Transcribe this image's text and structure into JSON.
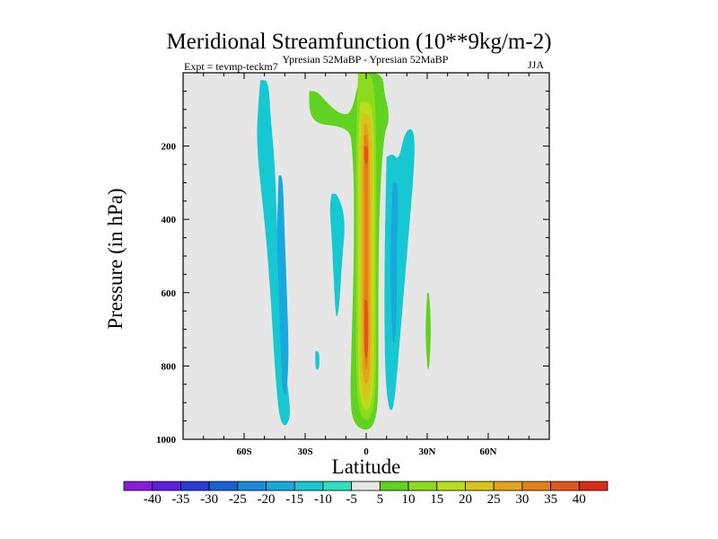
{
  "chart_data": {
    "type": "contour",
    "title": "Meridional Streamfunction (10**9kg/m-2)",
    "subtitle_center": "Ypresian  52MaBP - Ypresian  52MaBP",
    "subtitle_left": "Expt = tevmp-teckm7",
    "subtitle_right": "JJA",
    "xlabel": "Latitude",
    "ylabel": "Pressure (in hPa)",
    "xlim": [
      -90,
      90
    ],
    "ylim": [
      1000,
      0
    ],
    "x_ticks": [
      {
        "value": -60,
        "label": "60S"
      },
      {
        "value": -30,
        "label": "30S"
      },
      {
        "value": 0,
        "label": "0"
      },
      {
        "value": 30,
        "label": "30N"
      },
      {
        "value": 60,
        "label": "60N"
      }
    ],
    "y_ticks": [
      {
        "value": 200,
        "label": "200"
      },
      {
        "value": 400,
        "label": "400"
      },
      {
        "value": 600,
        "label": "600"
      },
      {
        "value": 800,
        "label": "800"
      },
      {
        "value": 1000,
        "label": "1000"
      }
    ],
    "background_color": "#e6e6e6",
    "contour_levels": [
      -40,
      -35,
      -30,
      -25,
      -20,
      -15,
      -10,
      -5,
      5,
      10,
      15,
      20,
      25,
      30,
      35,
      40
    ],
    "colorbar_colors": [
      "#8a1bdc",
      "#5a1ee0",
      "#2a3ad6",
      "#1760d6",
      "#1a8ad9",
      "#17a9dc",
      "#16c8d2",
      "#2ee0c0",
      "#e6e6e6",
      "#5fd31f",
      "#8edb1e",
      "#bcdc1e",
      "#d8c51c",
      "#e2a51a",
      "#e4801a",
      "#e2561a",
      "#dc2a18"
    ],
    "features": [
      {
        "name": "sh-outer-cell",
        "level": -10,
        "points": [
          [
            -52,
            20
          ],
          [
            -48,
            20
          ],
          [
            -47,
            120
          ],
          [
            -45,
            240
          ],
          [
            -44,
            380
          ],
          [
            -43,
            540
          ],
          [
            -41,
            700
          ],
          [
            -39,
            840
          ],
          [
            -37,
            930
          ],
          [
            -39,
            962
          ],
          [
            -41,
            962
          ],
          [
            -43,
            930
          ],
          [
            -45,
            800
          ],
          [
            -47,
            600
          ],
          [
            -50,
            400
          ],
          [
            -54,
            200
          ],
          [
            -53,
            80
          ],
          [
            -52,
            20
          ]
        ]
      },
      {
        "name": "sh-outer-core",
        "level": -15,
        "points": [
          [
            -43,
            280
          ],
          [
            -41,
            280
          ],
          [
            -40,
            450
          ],
          [
            -39,
            600
          ],
          [
            -38,
            760
          ],
          [
            -39,
            880
          ],
          [
            -41,
            880
          ],
          [
            -42,
            760
          ],
          [
            -43,
            600
          ],
          [
            -44,
            440
          ],
          [
            -43,
            280
          ]
        ]
      },
      {
        "name": "sh-inner-cell",
        "level": -10,
        "points": [
          [
            -17,
            330
          ],
          [
            -14,
            330
          ],
          [
            -10,
            400
          ],
          [
            -12,
            520
          ],
          [
            -13,
            620
          ],
          [
            -14,
            665
          ],
          [
            -15,
            665
          ],
          [
            -16,
            560
          ],
          [
            -17,
            440
          ],
          [
            -18,
            370
          ],
          [
            -17,
            330
          ]
        ]
      },
      {
        "name": "nh-inner-cell",
        "level": -10,
        "points": [
          [
            10,
            230
          ],
          [
            13,
            220
          ],
          [
            16,
            240
          ],
          [
            19,
            160
          ],
          [
            23,
            150
          ],
          [
            24,
            200
          ],
          [
            23,
            300
          ],
          [
            20,
            500
          ],
          [
            17,
            700
          ],
          [
            14,
            900
          ],
          [
            12,
            930
          ],
          [
            10,
            880
          ],
          [
            9,
            750
          ],
          [
            9,
            500
          ],
          [
            10,
            230
          ]
        ]
      },
      {
        "name": "nh-inner-core",
        "level": -15,
        "points": [
          [
            13,
            300
          ],
          [
            16,
            300
          ],
          [
            15,
            500
          ],
          [
            15,
            700
          ],
          [
            13,
            760
          ],
          [
            12,
            600
          ],
          [
            12,
            450
          ],
          [
            13,
            300
          ]
        ]
      },
      {
        "name": "small-cell-south",
        "level": -10,
        "points": [
          [
            -25,
            760
          ],
          [
            -23,
            760
          ],
          [
            -23,
            810
          ],
          [
            -25,
            810
          ],
          [
            -25,
            760
          ]
        ]
      },
      {
        "name": "small-cell-north",
        "level": 5,
        "points": [
          [
            30,
            600
          ],
          [
            31,
            600
          ],
          [
            32,
            700
          ],
          [
            31,
            810
          ],
          [
            30,
            810
          ],
          [
            29,
            700
          ],
          [
            30,
            600
          ]
        ]
      },
      {
        "name": "upper-bridge",
        "level": 5,
        "points": [
          [
            -28,
            50
          ],
          [
            -24,
            50
          ],
          [
            -18,
            90
          ],
          [
            -12,
            115
          ],
          [
            -7,
            110
          ],
          [
            -3,
            0
          ],
          [
            8,
            0
          ],
          [
            9,
            60
          ],
          [
            11,
            100
          ],
          [
            11,
            140
          ],
          [
            9,
            160
          ],
          [
            7,
            300
          ],
          [
            6,
            500
          ],
          [
            6,
            700
          ],
          [
            6,
            900
          ],
          [
            4,
            960
          ],
          [
            0,
            978
          ],
          [
            -6,
            960
          ],
          [
            -8,
            900
          ],
          [
            -7,
            700
          ],
          [
            -6,
            500
          ],
          [
            -6,
            300
          ],
          [
            -7,
            200
          ],
          [
            -8,
            160
          ],
          [
            -14,
            145
          ],
          [
            -24,
            140
          ],
          [
            -28,
            110
          ],
          [
            -28,
            50
          ]
        ]
      },
      {
        "name": "jet-10",
        "level": 10,
        "points": [
          [
            -4,
            0
          ],
          [
            4,
            0
          ],
          [
            5,
            200
          ],
          [
            5,
            400
          ],
          [
            5,
            600
          ],
          [
            5,
            800
          ],
          [
            4,
            920
          ],
          [
            0,
            955
          ],
          [
            -4,
            920
          ],
          [
            -5,
            800
          ],
          [
            -5,
            600
          ],
          [
            -5,
            400
          ],
          [
            -5,
            200
          ],
          [
            -4,
            0
          ]
        ]
      },
      {
        "name": "jet-15",
        "level": 15,
        "points": [
          [
            -3,
            80
          ],
          [
            3,
            80
          ],
          [
            4,
            200
          ],
          [
            4,
            400
          ],
          [
            4,
            600
          ],
          [
            4,
            800
          ],
          [
            3,
            900
          ],
          [
            0,
            925
          ],
          [
            -3,
            900
          ],
          [
            -4,
            800
          ],
          [
            -4,
            600
          ],
          [
            -4,
            400
          ],
          [
            -4,
            200
          ],
          [
            -3,
            80
          ]
        ]
      },
      {
        "name": "jet-20",
        "level": 20,
        "points": [
          [
            -2,
            110
          ],
          [
            2,
            110
          ],
          [
            3,
            200
          ],
          [
            3,
            400
          ],
          [
            3,
            600
          ],
          [
            3,
            800
          ],
          [
            2,
            880
          ],
          [
            0,
            895
          ],
          [
            -2,
            880
          ],
          [
            -3,
            800
          ],
          [
            -3,
            600
          ],
          [
            -3,
            400
          ],
          [
            -3,
            200
          ],
          [
            -2,
            110
          ]
        ]
      },
      {
        "name": "jet-25",
        "level": 25,
        "points": [
          [
            -1,
            140
          ],
          [
            1,
            140
          ],
          [
            2,
            250
          ],
          [
            2,
            400
          ],
          [
            2,
            600
          ],
          [
            2,
            800
          ],
          [
            1,
            850
          ],
          [
            -1,
            850
          ],
          [
            -2,
            800
          ],
          [
            -2,
            600
          ],
          [
            -2,
            400
          ],
          [
            -2,
            250
          ],
          [
            -1,
            140
          ]
        ]
      },
      {
        "name": "jet-30",
        "level": 30,
        "points": [
          [
            -1,
            170
          ],
          [
            1,
            170
          ],
          [
            1,
            300
          ],
          [
            1,
            450
          ],
          [
            1,
            600
          ],
          [
            1,
            780
          ],
          [
            0,
            820
          ],
          [
            -1,
            780
          ],
          [
            -1,
            600
          ],
          [
            -1,
            450
          ],
          [
            -1,
            300
          ],
          [
            -1,
            170
          ]
        ]
      },
      {
        "name": "jet-35-upper",
        "level": 35,
        "points": [
          [
            -1,
            200
          ],
          [
            1,
            200
          ],
          [
            1,
            240
          ],
          [
            0,
            255
          ],
          [
            -1,
            240
          ],
          [
            -1,
            200
          ]
        ]
      },
      {
        "name": "jet-35-lower",
        "level": 35,
        "points": [
          [
            -1,
            620
          ],
          [
            1,
            620
          ],
          [
            1,
            780
          ],
          [
            -1,
            780
          ],
          [
            -1,
            620
          ]
        ]
      }
    ]
  }
}
